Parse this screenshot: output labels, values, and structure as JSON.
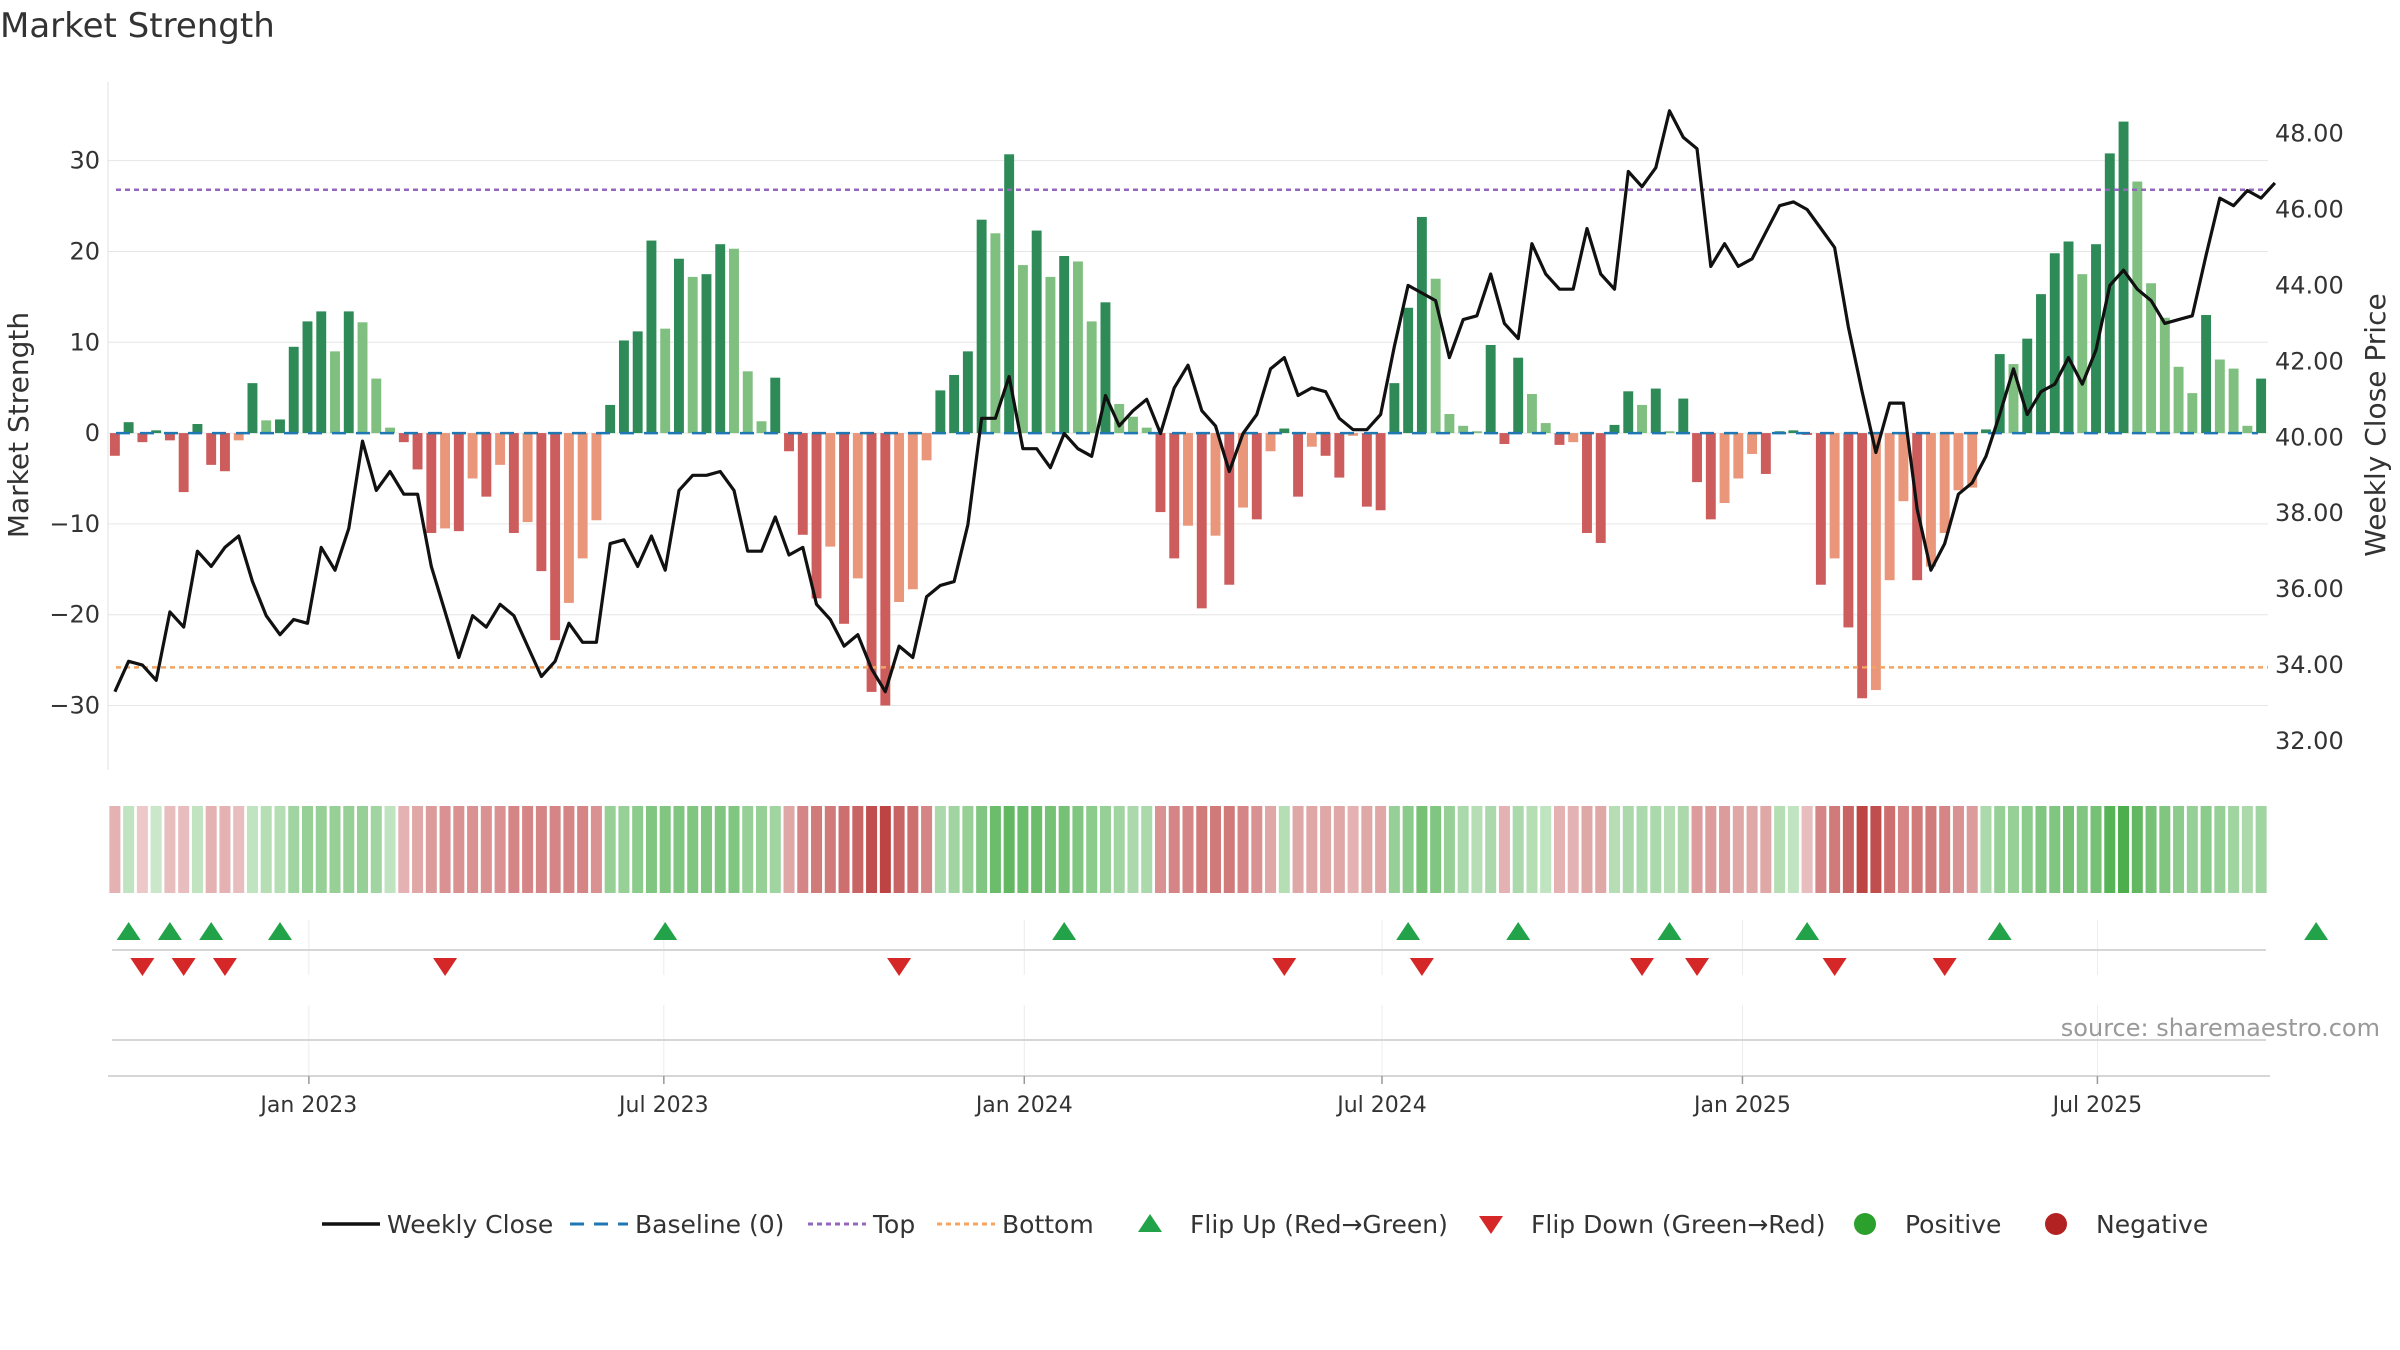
{
  "title": "Market Strength",
  "source": "source: sharemaestro.com",
  "colors": {
    "strong_green": "#2e8b57",
    "light_green": "#7fbf7f",
    "strong_red": "#cd5c5c",
    "light_red": "#e9967a",
    "line": "#111111",
    "baseline": "#1f77b4",
    "top": "#9467bd",
    "bottom": "#f4a460",
    "flip_up": "#22a34a",
    "flip_down": "#d62728",
    "positive": "#2ca02c",
    "negative": "#b22222",
    "grid": "#e6e6e6"
  },
  "chart_data": {
    "type": "bar+line",
    "title": "Market Strength",
    "y_left": {
      "label": "Market Strength",
      "range": [
        -36,
        38
      ],
      "ticks": [
        30,
        20,
        10,
        0,
        -10,
        -20,
        -30
      ],
      "tick_labels": [
        "30",
        "20",
        "10",
        "0",
        "−10",
        "−20",
        "−30"
      ]
    },
    "y_right": {
      "label": "Weekly Close Price",
      "range": [
        31.5,
        49.2
      ],
      "ticks": [
        48,
        46,
        44,
        42,
        40,
        38,
        36,
        34,
        32
      ],
      "tick_labels": [
        "48.00",
        "46.00",
        "44.00",
        "42.00",
        "40.00",
        "38.00",
        "36.00",
        "34.00",
        "32.00"
      ]
    },
    "x_ticks": [
      "Jan 2023",
      "Jul 2023",
      "Jan 2024",
      "Jul 2024",
      "Jan 2025",
      "Jul 2025"
    ],
    "x_tick_weeks": [
      14.6,
      40.4,
      66.6,
      92.6,
      118.8,
      144.6
    ],
    "top_level": 26.8,
    "bottom_level": -25.8,
    "strength": [
      -2.5,
      1.2,
      -1,
      0.3,
      -0.8,
      -6.5,
      1,
      -3.5,
      -4.2,
      -0.8,
      5.5,
      1.4,
      1.5,
      9.5,
      12.3,
      13.4,
      9,
      13.4,
      12.2,
      6,
      0.6,
      -1,
      -4,
      -11,
      -10.5,
      -10.8,
      -5,
      -7,
      -3.5,
      -11,
      -9.8,
      -15.2,
      -22.8,
      -18.7,
      -13.8,
      -9.6,
      3.1,
      10.2,
      11.2,
      21.2,
      11.5,
      19.2,
      17.2,
      17.5,
      20.8,
      20.3,
      6.8,
      1.3,
      6.1,
      -2,
      -11.2,
      -18.2,
      -12.5,
      -21,
      -16,
      -28.5,
      -30,
      -18.6,
      -17.2,
      -3,
      4.7,
      6.4,
      9,
      23.5,
      22,
      30.7,
      18.5,
      22.3,
      17.2,
      19.5,
      18.9,
      12.3,
      14.4,
      3.2,
      1.8,
      0.6,
      -8.7,
      -13.8,
      -10.2,
      -19.3,
      -11.3,
      -16.7,
      -8.2,
      -9.5,
      -2,
      0.5,
      -7,
      -1.5,
      -2.5,
      -4.9,
      -0.3,
      -8.1,
      -8.5,
      5.5,
      13.8,
      23.8,
      17,
      2.1,
      0.8,
      0.2,
      9.7,
      -1.2,
      8.3,
      4.3,
      1.1,
      -1.3,
      -1,
      -11,
      -12.1,
      0.9,
      4.6,
      3.1,
      4.9,
      0.2,
      3.8,
      -5.4,
      -9.5,
      -7.7,
      -5,
      -2.3,
      -4.5,
      0.2,
      0.3,
      -0.2,
      -16.7,
      -13.8,
      -21.4,
      -29.2,
      -28.3,
      -16.2,
      -7.5,
      -16.2,
      -14.7,
      -11,
      -6.3,
      -6,
      0.4,
      8.7,
      7.6,
      10.4,
      15.3,
      19.8,
      21.1,
      17.5,
      20.8,
      30.8,
      34.3,
      27.7,
      16.5,
      12.7,
      7.3,
      4.4,
      13,
      8.1,
      7.1,
      0.8,
      6
    ],
    "price": [
      33.3,
      34.1,
      34,
      33.6,
      35.4,
      35,
      37,
      36.6,
      37.1,
      37.4,
      36.2,
      35.3,
      34.8,
      35.2,
      35.1,
      37.1,
      36.5,
      37.6,
      39.9,
      38.6,
      39.1,
      38.5,
      38.5,
      36.6,
      35.4,
      34.2,
      35.3,
      35,
      35.6,
      35.3,
      34.5,
      33.7,
      34.1,
      35.1,
      34.6,
      34.6,
      37.2,
      37.3,
      36.6,
      37.4,
      36.5,
      38.6,
      39,
      39,
      39.1,
      38.6,
      37,
      37,
      37.9,
      36.9,
      37.1,
      35.6,
      35.2,
      34.5,
      34.8,
      33.9,
      33.3,
      34.5,
      34.2,
      35.8,
      36.1,
      36.2,
      37.7,
      40.5,
      40.5,
      41.6,
      39.7,
      39.7,
      39.2,
      40.1,
      39.7,
      39.5,
      41.1,
      40.3,
      40.7,
      41,
      40.1,
      41.3,
      41.9,
      40.7,
      40.3,
      39.1,
      40.1,
      40.6,
      41.8,
      42.1,
      41.1,
      41.3,
      41.2,
      40.5,
      40.2,
      40.2,
      40.6,
      42.4,
      44,
      43.8,
      43.6,
      42.1,
      43.1,
      43.2,
      44.3,
      43,
      42.6,
      45.1,
      44.3,
      43.9,
      43.9,
      45.5,
      44.3,
      43.9,
      47,
      46.6,
      47.1,
      48.6,
      47.9,
      47.6,
      44.5,
      45.1,
      44.5,
      44.7,
      45.4,
      46.1,
      46.2,
      46,
      45.5,
      45,
      42.9,
      41.2,
      39.6,
      40.9,
      40.9,
      38.1,
      36.5,
      37.2,
      38.5,
      38.8,
      39.5,
      40.6,
      41.8,
      40.6,
      41.2,
      41.4,
      42.1,
      41.4,
      42.3,
      44,
      44.4,
      43.9,
      43.6,
      43,
      43.1,
      43.2,
      44.8,
      46.3,
      46.1,
      46.5,
      46.3,
      46.7
    ],
    "band_strength": [
      0.35,
      0.3,
      0.25,
      0.25,
      0.3,
      0.3,
      0.3,
      0.35,
      0.35,
      0.3,
      0.3,
      0.35,
      0.35,
      0.45,
      0.5,
      0.5,
      0.5,
      0.5,
      0.5,
      0.45,
      0.3,
      0.35,
      0.4,
      0.45,
      0.5,
      0.5,
      0.5,
      0.5,
      0.5,
      0.55,
      0.55,
      0.55,
      0.55,
      0.55,
      0.55,
      0.5,
      0.5,
      0.5,
      0.55,
      0.6,
      0.6,
      0.6,
      0.6,
      0.6,
      0.6,
      0.6,
      0.5,
      0.5,
      0.45,
      0.4,
      0.55,
      0.6,
      0.6,
      0.65,
      0.7,
      0.8,
      0.85,
      0.7,
      0.65,
      0.55,
      0.4,
      0.45,
      0.5,
      0.6,
      0.7,
      0.75,
      0.7,
      0.7,
      0.65,
      0.65,
      0.6,
      0.55,
      0.5,
      0.45,
      0.4,
      0.4,
      0.5,
      0.55,
      0.55,
      0.6,
      0.6,
      0.6,
      0.55,
      0.5,
      0.4,
      0.35,
      0.4,
      0.4,
      0.4,
      0.4,
      0.35,
      0.4,
      0.4,
      0.5,
      0.55,
      0.65,
      0.6,
      0.5,
      0.4,
      0.35,
      0.4,
      0.35,
      0.4,
      0.35,
      0.3,
      0.35,
      0.35,
      0.4,
      0.4,
      0.35,
      0.4,
      0.4,
      0.4,
      0.35,
      0.4,
      0.45,
      0.45,
      0.45,
      0.4,
      0.4,
      0.4,
      0.35,
      0.3,
      0.3,
      0.55,
      0.6,
      0.7,
      0.85,
      0.8,
      0.65,
      0.55,
      0.6,
      0.6,
      0.55,
      0.5,
      0.45,
      0.4,
      0.5,
      0.5,
      0.55,
      0.6,
      0.6,
      0.65,
      0.6,
      0.65,
      0.8,
      0.85,
      0.75,
      0.65,
      0.6,
      0.55,
      0.5,
      0.55,
      0.5,
      0.45,
      0.4,
      0.45
    ],
    "flip_up_weeks": [
      1,
      4,
      7,
      12,
      40,
      69,
      94,
      102,
      113,
      123,
      137,
      160
    ],
    "flip_down_weeks": [
      2,
      5,
      8,
      24,
      57,
      85,
      95,
      111,
      115,
      125,
      133
    ],
    "legend": [
      {
        "kind": "line",
        "label": "Weekly Close"
      },
      {
        "kind": "baseline",
        "label": "Baseline (0)"
      },
      {
        "kind": "top",
        "label": "Top"
      },
      {
        "kind": "bottom",
        "label": "Bottom"
      },
      {
        "kind": "flipup",
        "label": "Flip Up (Red→Green)"
      },
      {
        "kind": "flipdown",
        "label": "Flip Down (Green→Red)"
      },
      {
        "kind": "positive",
        "label": "Positive"
      },
      {
        "kind": "negative",
        "label": "Negative"
      }
    ]
  }
}
